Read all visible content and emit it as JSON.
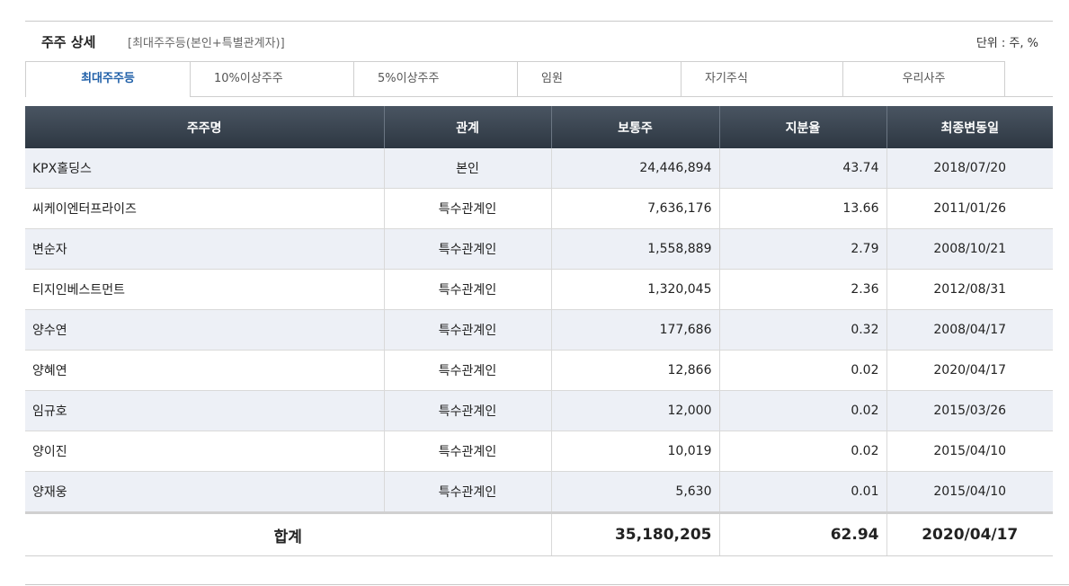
{
  "header": {
    "title": "주주 상세",
    "subtitle": "[최대주주등(본인+특별관계자)]",
    "unit": "단위 : 주, %"
  },
  "tabs": [
    {
      "label": "최대주주등",
      "active": true
    },
    {
      "label": "10%이상주주",
      "active": false
    },
    {
      "label": "5%이상주주",
      "active": false
    },
    {
      "label": "임원",
      "active": false
    },
    {
      "label": "자기주식",
      "active": false
    },
    {
      "label": "우리사주",
      "active": false
    }
  ],
  "table": {
    "columns": [
      "주주명",
      "관계",
      "보통주",
      "지분율",
      "최종변동일"
    ],
    "rows": [
      {
        "name": "KPX홀딩스",
        "relation": "본인",
        "shares": "24,446,894",
        "ratio": "43.74",
        "date": "2018/07/20"
      },
      {
        "name": "씨케이엔터프라이즈",
        "relation": "특수관계인",
        "shares": "7,636,176",
        "ratio": "13.66",
        "date": "2011/01/26"
      },
      {
        "name": "변순자",
        "relation": "특수관계인",
        "shares": "1,558,889",
        "ratio": "2.79",
        "date": "2008/10/21"
      },
      {
        "name": "티지인베스트먼트",
        "relation": "특수관계인",
        "shares": "1,320,045",
        "ratio": "2.36",
        "date": "2012/08/31"
      },
      {
        "name": "양수연",
        "relation": "특수관계인",
        "shares": "177,686",
        "ratio": "0.32",
        "date": "2008/04/17"
      },
      {
        "name": "양혜연",
        "relation": "특수관계인",
        "shares": "12,866",
        "ratio": "0.02",
        "date": "2020/04/17"
      },
      {
        "name": "임규호",
        "relation": "특수관계인",
        "shares": "12,000",
        "ratio": "0.02",
        "date": "2015/03/26"
      },
      {
        "name": "양이진",
        "relation": "특수관계인",
        "shares": "10,019",
        "ratio": "0.02",
        "date": "2015/04/10"
      },
      {
        "name": "양재웅",
        "relation": "특수관계인",
        "shares": "5,630",
        "ratio": "0.01",
        "date": "2015/04/10"
      }
    ],
    "total": {
      "label": "합계",
      "shares": "35,180,205",
      "ratio": "62.94",
      "date": "2020/04/17"
    }
  },
  "colors": {
    "header_bg": "#2d3742",
    "active_tab": "#1f5fa8",
    "odd_row": "#edf0f6"
  }
}
